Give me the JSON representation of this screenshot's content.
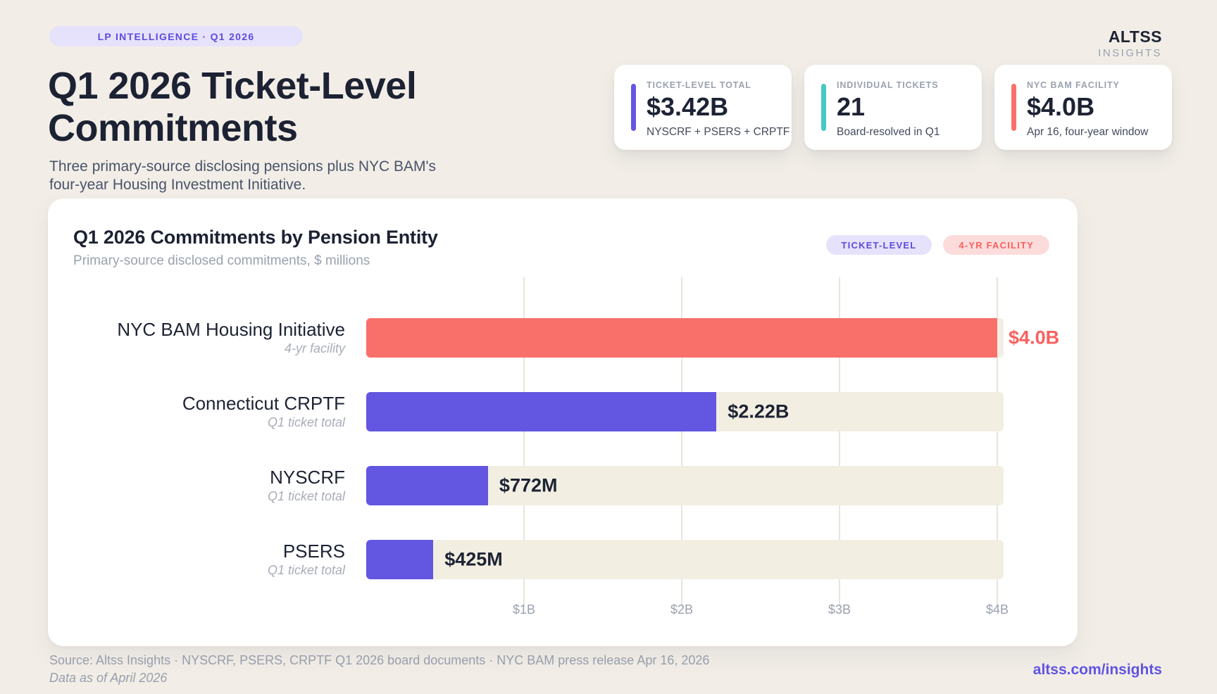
{
  "header": {
    "badge": "LP INTELLIGENCE  ·  Q1 2026",
    "brand_name": "ALTSS",
    "brand_tagline": "INSIGHTS",
    "title_line1": "Q1 2026 Ticket-Level",
    "title_line2": "Commitments",
    "subtitle_line1": "Three primary-source disclosing pensions plus NYC BAM's",
    "subtitle_line2": "four-year Housing Investment Initiative."
  },
  "stats": [
    {
      "label": "TICKET-LEVEL TOTAL",
      "value": "$3.42B",
      "detail": "NYSCRF + PSERS + CRPTF",
      "accent": "#6457e1"
    },
    {
      "label": "INDIVIDUAL TICKETS",
      "value": "21",
      "detail": "Board-resolved in Q1",
      "accent": "#45c9c1"
    },
    {
      "label": "NYC BAM FACILITY",
      "value": "$4.0B",
      "detail": "Apr 16, four-year window",
      "accent": "#f9706b"
    }
  ],
  "chart_data": {
    "type": "bar",
    "orientation": "horizontal",
    "title": "Q1 2026 Commitments by Pension Entity",
    "subtitle": "Primary-source disclosed commitments, $ millions",
    "legend": [
      {
        "label": "TICKET-LEVEL",
        "color": "#5b4be0",
        "bg": "#e7e2fb"
      },
      {
        "label": "4-YR FACILITY",
        "color": "#f8615f",
        "bg": "#fcdcdb"
      }
    ],
    "rows": [
      {
        "label": "NYC BAM Housing Initiative",
        "sublabel": "4-yr facility",
        "value_musd": 4000,
        "value_label": "$4.0B",
        "series": "4-yr facility",
        "bar_color": "#f9706b",
        "value_color": "#f8615f"
      },
      {
        "label": "Connecticut CRPTF",
        "sublabel": "Q1 ticket total",
        "value_musd": 2220,
        "value_label": "$2.22B",
        "series": "ticket-level",
        "bar_color": "#6356e0",
        "value_color": "#1d2334"
      },
      {
        "label": "NYSCRF",
        "sublabel": "Q1 ticket total",
        "value_musd": 772,
        "value_label": "$772M",
        "series": "ticket-level",
        "bar_color": "#6356e0",
        "value_color": "#1d2334"
      },
      {
        "label": "PSERS",
        "sublabel": "Q1 ticket total",
        "value_musd": 425,
        "value_label": "$425M",
        "series": "ticket-level",
        "bar_color": "#6356e0",
        "value_color": "#1d2334"
      }
    ],
    "x_axis": {
      "ticks": [
        {
          "label": "$1B",
          "value_musd": 1000
        },
        {
          "label": "$2B",
          "value_musd": 2000
        },
        {
          "label": "$3B",
          "value_musd": 3000
        },
        {
          "label": "$4B",
          "value_musd": 4000
        }
      ]
    },
    "xlim_musd": [
      0,
      4040
    ],
    "grid": true,
    "legend_position": "top-right",
    "track_color": "#f2eee2"
  },
  "footer": {
    "source": "Source: Altss Insights · NYSCRF, PSERS, CRPTF Q1 2026 board documents · NYC BAM press release Apr 16, 2026",
    "as_of": "Data as of April 2026",
    "url_prefix": "altss.com/",
    "url_suffix": "insights"
  }
}
